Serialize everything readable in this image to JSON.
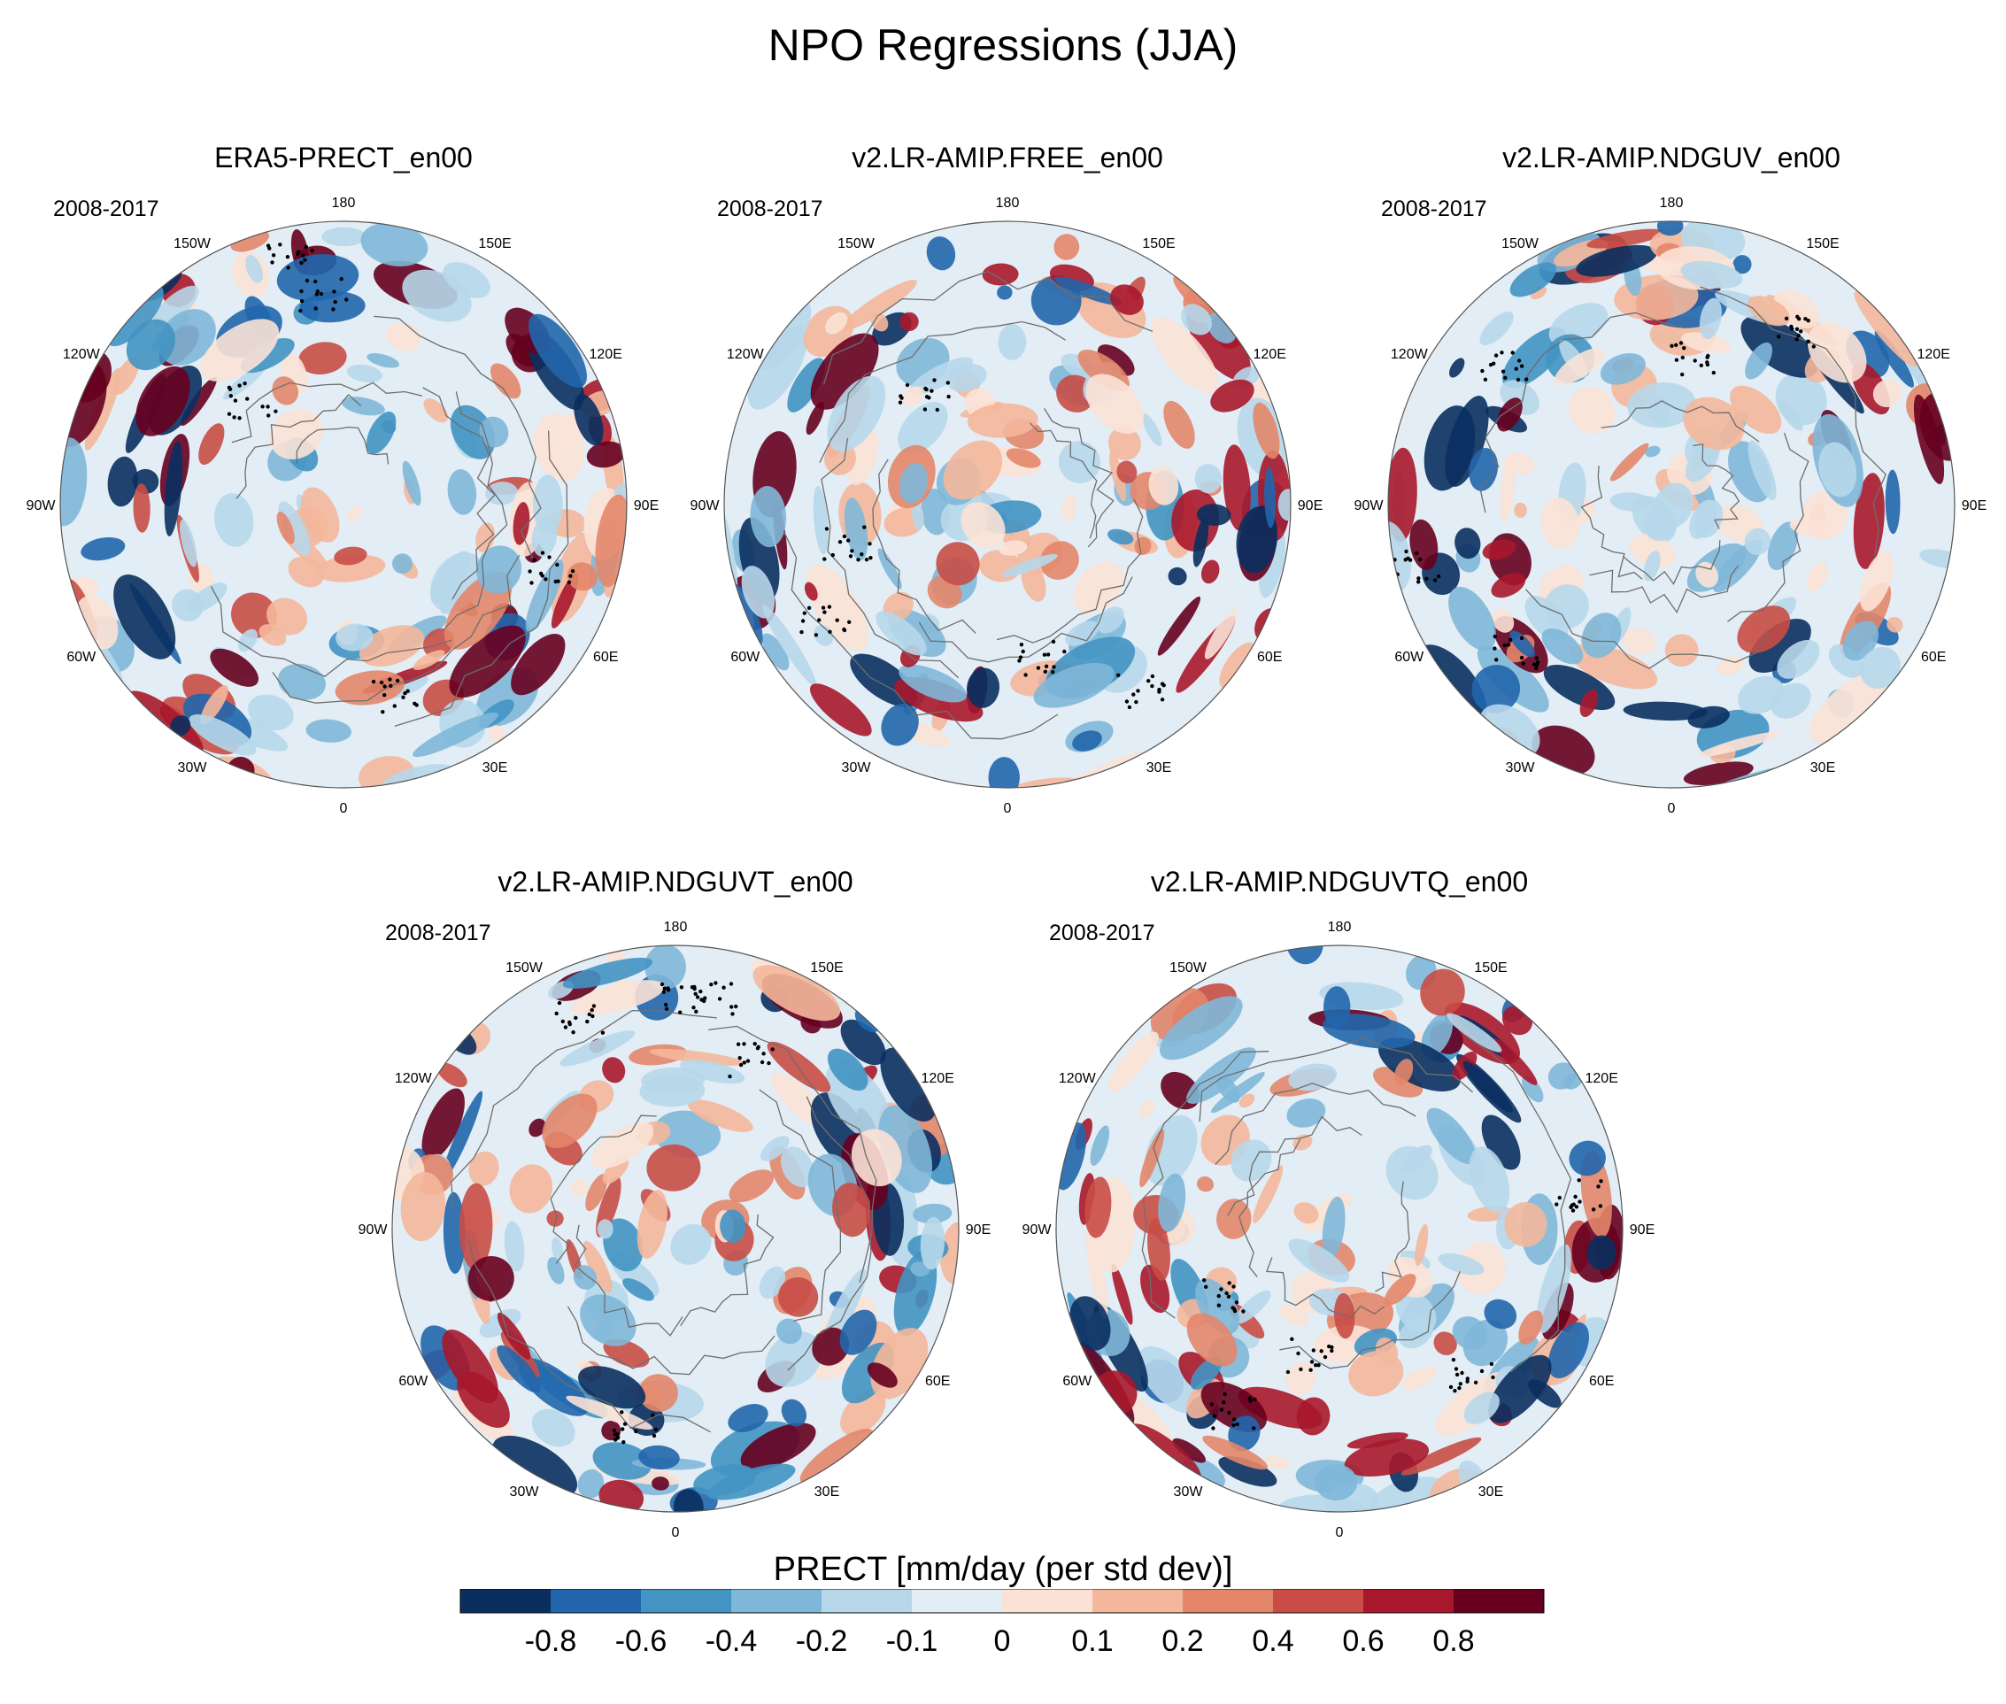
{
  "title": "NPO Regressions (JJA)",
  "chart_data": {
    "type": "polar-map-panels",
    "variable": "PRECT",
    "season": "JJA",
    "period": "2008-2017",
    "panels": [
      {
        "title": "ERA5-PRECT_en00",
        "period": "2008-2017"
      },
      {
        "title": "v2.LR-AMIP.FREE_en00",
        "period": "2008-2017"
      },
      {
        "title": "v2.LR-AMIP.NDGUV_en00",
        "period": "2008-2017"
      },
      {
        "title": "v2.LR-AMIP.NDGUVT_en00",
        "period": "2008-2017"
      },
      {
        "title": "v2.LR-AMIP.NDGUVTQ_en00",
        "period": "2008-2017"
      }
    ],
    "longitude_labels": [
      "180",
      "150E",
      "120E",
      "90E",
      "60E",
      "30E",
      "0",
      "30W",
      "60W",
      "90W",
      "120W",
      "150W"
    ],
    "longitude_degrees": [
      180,
      150,
      120,
      90,
      60,
      30,
      0,
      -30,
      -60,
      -90,
      -120,
      -150
    ],
    "colorbar": {
      "title": "PRECT [mm/day (per std dev)]",
      "levels": [
        "-0.8",
        "-0.6",
        "-0.4",
        "-0.2",
        "-0.1",
        "0",
        "0.1",
        "0.2",
        "0.4",
        "0.6",
        "0.8"
      ],
      "colors": [
        "#0a2f5f",
        "#2166ac",
        "#4393c3",
        "#7fb7d8",
        "#b7d7ea",
        "#e2edf5",
        "#fbe2d6",
        "#f4b79b",
        "#e3866a",
        "#c94c46",
        "#a8172b",
        "#67001f"
      ]
    }
  }
}
